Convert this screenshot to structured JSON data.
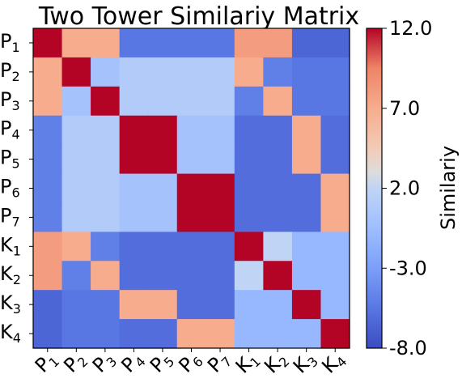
{
  "chart_data": {
    "type": "heatmap",
    "title": "Two Tower Similariy Matrix",
    "rows": [
      {
        "base": "P",
        "sub": "1"
      },
      {
        "base": "P",
        "sub": "2"
      },
      {
        "base": "P",
        "sub": "3"
      },
      {
        "base": "P",
        "sub": "4"
      },
      {
        "base": "P",
        "sub": "5"
      },
      {
        "base": "P",
        "sub": "6"
      },
      {
        "base": "P",
        "sub": "7"
      },
      {
        "base": "K",
        "sub": "1"
      },
      {
        "base": "K",
        "sub": "2"
      },
      {
        "base": "K",
        "sub": "3"
      },
      {
        "base": "K",
        "sub": "4"
      }
    ],
    "columns": [
      {
        "base": "P",
        "sub": "1"
      },
      {
        "base": "P",
        "sub": "2"
      },
      {
        "base": "P",
        "sub": "3"
      },
      {
        "base": "P",
        "sub": "4"
      },
      {
        "base": "P",
        "sub": "5"
      },
      {
        "base": "P",
        "sub": "6"
      },
      {
        "base": "P",
        "sub": "7"
      },
      {
        "base": "K",
        "sub": "1"
      },
      {
        "base": "K",
        "sub": "2"
      },
      {
        "base": "K",
        "sub": "3"
      },
      {
        "base": "K",
        "sub": "4"
      }
    ],
    "values": [
      [
        12.0,
        7.0,
        7.0,
        -5.5,
        -5.5,
        -5.5,
        -5.5,
        8.0,
        8.0,
        -6.5,
        -6.5
      ],
      [
        7.0,
        12.0,
        0.0,
        1.0,
        1.0,
        1.0,
        1.0,
        7.0,
        -5.0,
        -5.5,
        -5.5
      ],
      [
        7.0,
        0.0,
        12.0,
        1.0,
        1.0,
        1.0,
        1.0,
        -5.0,
        7.0,
        -5.5,
        -5.5
      ],
      [
        -5.0,
        1.0,
        1.0,
        12.0,
        12.0,
        0.0,
        0.0,
        -6.0,
        -6.0,
        7.0,
        -6.0
      ],
      [
        -5.0,
        1.0,
        1.0,
        12.0,
        12.0,
        0.0,
        0.0,
        -6.0,
        -6.0,
        7.0,
        -6.0
      ],
      [
        -5.0,
        1.0,
        1.0,
        0.0,
        0.0,
        12.0,
        12.0,
        -6.0,
        -6.0,
        -6.0,
        7.0
      ],
      [
        -5.0,
        1.0,
        1.0,
        0.0,
        0.0,
        12.0,
        12.0,
        -6.0,
        -6.0,
        -6.0,
        7.0
      ],
      [
        8.0,
        7.0,
        -5.0,
        -6.0,
        -6.0,
        -6.0,
        -6.0,
        12.0,
        2.0,
        -1.0,
        -1.0
      ],
      [
        8.0,
        -5.0,
        7.0,
        -6.0,
        -6.0,
        -6.0,
        -6.0,
        2.0,
        12.0,
        -1.0,
        -1.0
      ],
      [
        -6.5,
        -5.5,
        -5.5,
        7.0,
        7.0,
        -6.0,
        -6.0,
        -1.0,
        -1.0,
        12.0,
        -1.0
      ],
      [
        -6.5,
        -5.5,
        -5.5,
        -6.0,
        -6.0,
        7.0,
        7.0,
        -1.0,
        -1.0,
        -1.0,
        12.0
      ]
    ],
    "colorbar": {
      "label": "Similariy",
      "min": -8.0,
      "max": 12.0,
      "ticks": [
        "12.0",
        "7.0",
        "2.0",
        "-3.0",
        "-8.0"
      ],
      "colormap": "coolwarm"
    }
  }
}
